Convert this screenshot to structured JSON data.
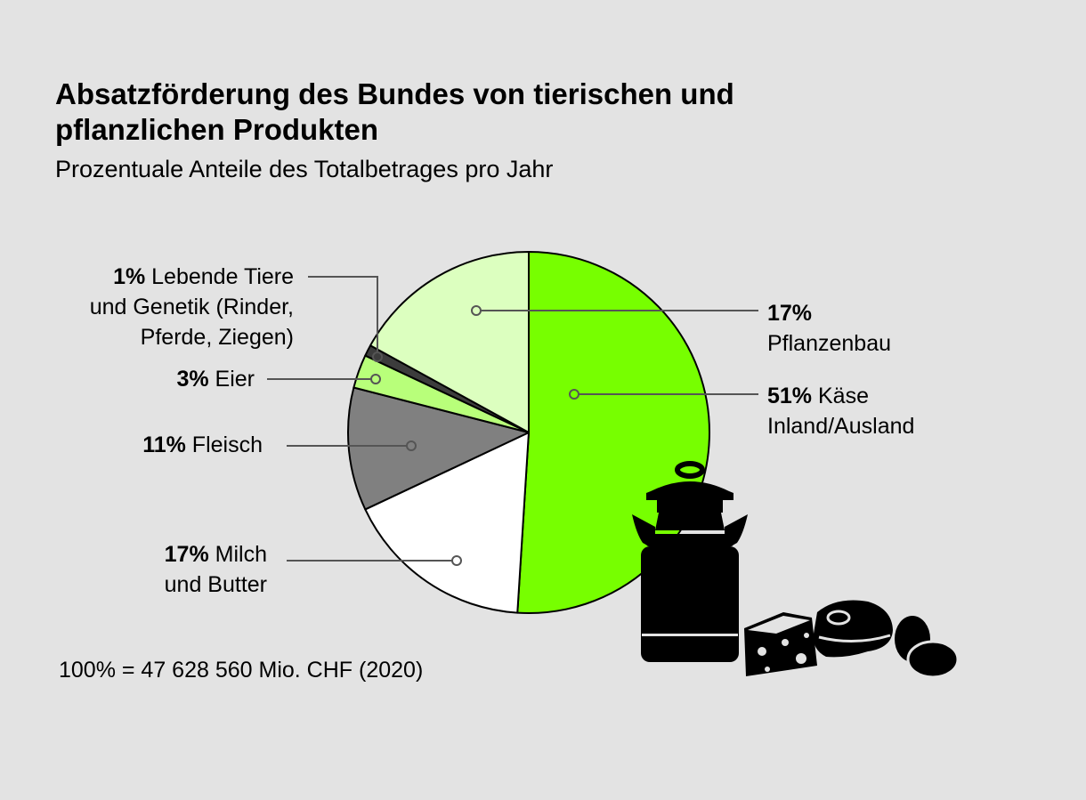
{
  "title": "Absatzförderung des Bundes von tierischen und pflanzlichen Produkten",
  "subtitle": "Prozentuale Anteile des Totalbetrages pro Jahr",
  "footnote": "100% = 47 628 560 Mio. CHF (2020)",
  "chart_data": {
    "type": "pie",
    "title": "Absatzförderung des Bundes von tierischen und pflanzlichen Produkten",
    "subtitle": "Prozentuale Anteile des Totalbetrages pro Jahr",
    "slices": [
      {
        "pct": "51%",
        "label": "Käse\nInland/Ausland",
        "value": 51,
        "color": "#77ff00"
      },
      {
        "pct": "17%",
        "label": "Milch\nund Butter",
        "value": 17,
        "color": "#ffffff"
      },
      {
        "pct": "11%",
        "label": "Fleisch",
        "value": 11,
        "color": "#808080"
      },
      {
        "pct": "3%",
        "label": "Eier",
        "value": 3,
        "color": "#b8ff7a"
      },
      {
        "pct": "1%",
        "label": "Lebende Tiere\nund Genetik (Rinder,\nPferde, Ziegen)",
        "value": 1,
        "color": "#3c3c3c"
      },
      {
        "pct": "17%",
        "label": "Pflanzenbau",
        "value": 17,
        "color": "#dcffbf"
      }
    ],
    "icons": [
      "milk-can-icon",
      "cheese-icon",
      "meat-icon",
      "eggs-icon"
    ]
  }
}
